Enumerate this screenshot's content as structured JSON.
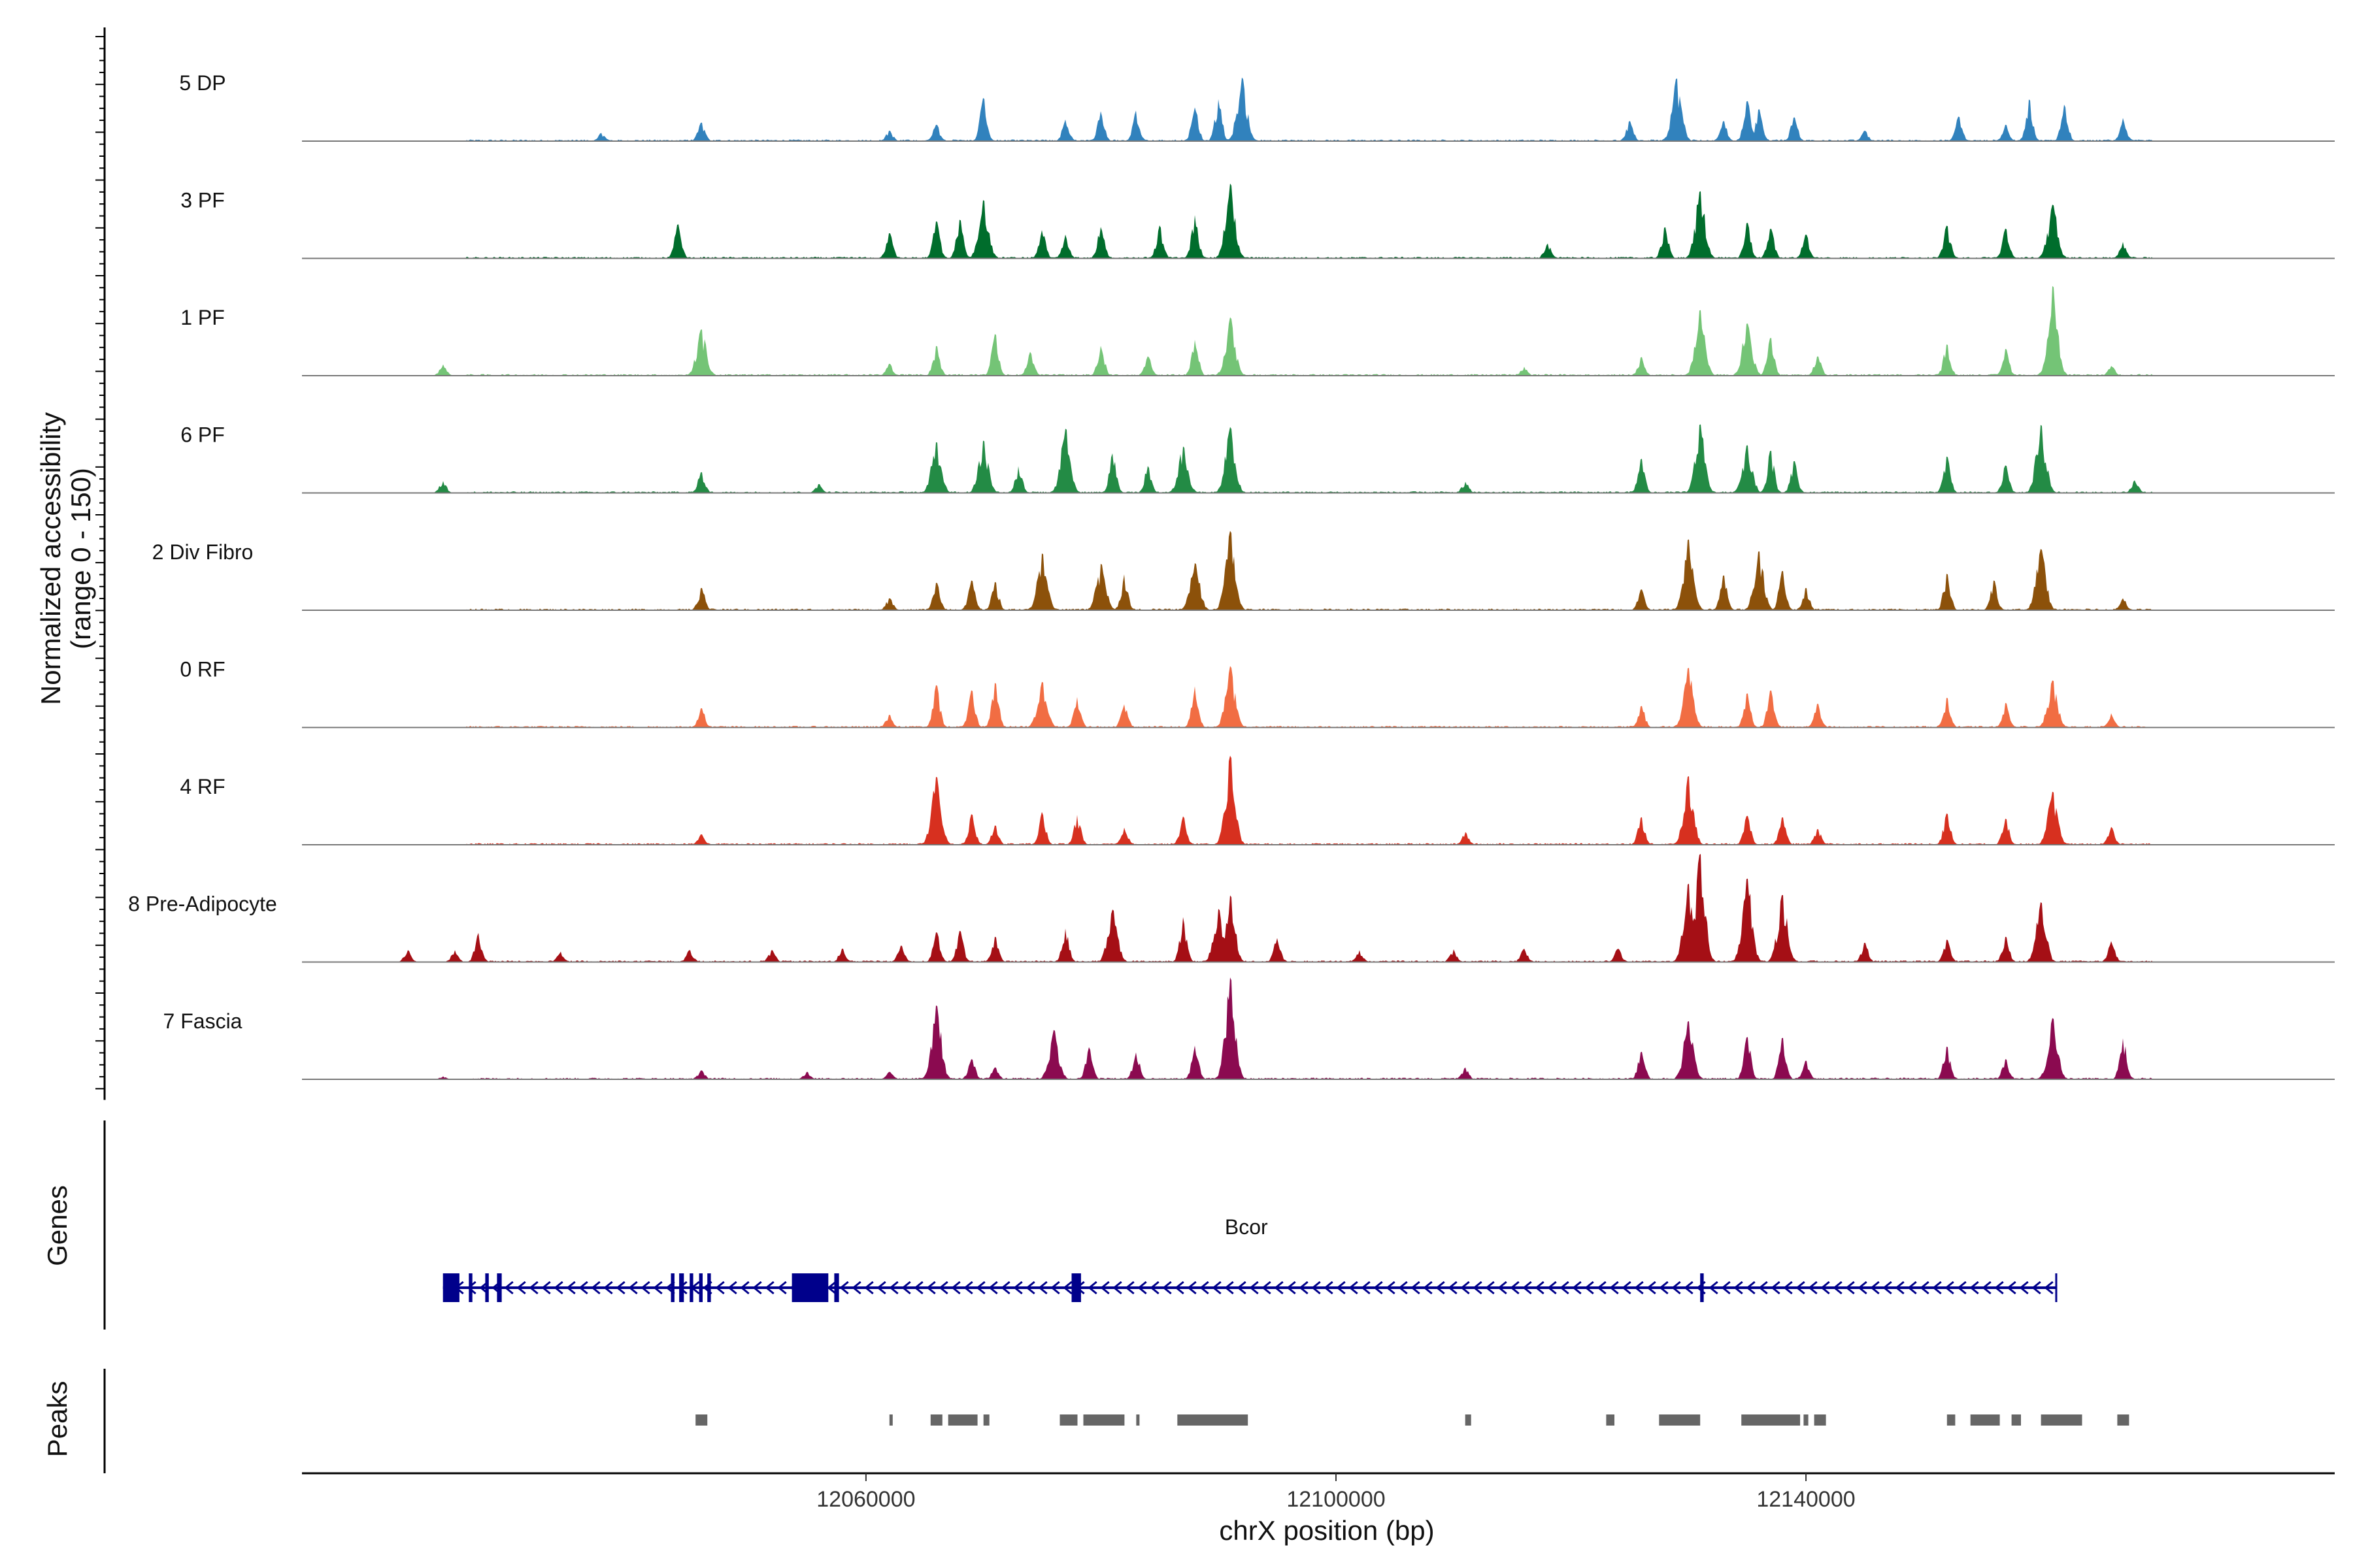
{
  "chart_data": {
    "type": "area",
    "title": "",
    "region": "chrX",
    "xlim": [
      12012000,
      12185000
    ],
    "xlabel": "chrX position (bp)",
    "x_ticks": [
      12060000,
      12100000,
      12140000
    ],
    "x_tick_labels": [
      "12060000",
      "12100000",
      "12140000"
    ],
    "coverage_ylabel": "Normalized accessibility\n(range 0 - 150)",
    "coverage_ylim": [
      0,
      150
    ],
    "genes_ylabel": "Genes",
    "peaks_ylabel": "Peaks",
    "series": [
      {
        "name": "5 DP",
        "color": "#3182bd",
        "peaks": [
          [
            12037500,
            11
          ],
          [
            12046000,
            25
          ],
          [
            12062000,
            14
          ],
          [
            12066000,
            22
          ],
          [
            12070000,
            58
          ],
          [
            12077000,
            29
          ],
          [
            12080000,
            40
          ],
          [
            12083000,
            41
          ],
          [
            12088000,
            45
          ],
          [
            12090000,
            56
          ],
          [
            12092000,
            85
          ],
          [
            12125000,
            27
          ],
          [
            12129000,
            84
          ],
          [
            12133000,
            27
          ],
          [
            12135000,
            54
          ],
          [
            12136000,
            43
          ],
          [
            12139000,
            32
          ],
          [
            12145000,
            14
          ],
          [
            12153000,
            33
          ],
          [
            12157000,
            22
          ],
          [
            12159000,
            56
          ],
          [
            12162000,
            49
          ],
          [
            12167000,
            31
          ]
        ]
      },
      {
        "name": "3 PF",
        "color": "#006d2c",
        "peaks": [
          [
            12044000,
            46
          ],
          [
            12062000,
            34
          ],
          [
            12066000,
            50
          ],
          [
            12068000,
            52
          ],
          [
            12070000,
            78
          ],
          [
            12075000,
            38
          ],
          [
            12077000,
            32
          ],
          [
            12080000,
            42
          ],
          [
            12085000,
            44
          ],
          [
            12088000,
            58
          ],
          [
            12091000,
            100
          ],
          [
            12118000,
            20
          ],
          [
            12128000,
            42
          ],
          [
            12131000,
            90
          ],
          [
            12135000,
            48
          ],
          [
            12137000,
            40
          ],
          [
            12140000,
            32
          ],
          [
            12152000,
            44
          ],
          [
            12157000,
            40
          ],
          [
            12161000,
            72
          ],
          [
            12167000,
            22
          ]
        ]
      },
      {
        "name": "1 PF",
        "color": "#74c476",
        "peaks": [
          [
            12024000,
            15
          ],
          [
            12046000,
            62
          ],
          [
            12062000,
            16
          ],
          [
            12066000,
            40
          ],
          [
            12071000,
            56
          ],
          [
            12074000,
            32
          ],
          [
            12080000,
            40
          ],
          [
            12084000,
            26
          ],
          [
            12088000,
            48
          ],
          [
            12091000,
            78
          ],
          [
            12116000,
            12
          ],
          [
            12126000,
            25
          ],
          [
            12131000,
            88
          ],
          [
            12135000,
            70
          ],
          [
            12137000,
            51
          ],
          [
            12141000,
            26
          ],
          [
            12152000,
            42
          ],
          [
            12157000,
            36
          ],
          [
            12161000,
            120
          ],
          [
            12166000,
            13
          ]
        ]
      },
      {
        "name": "6 PF",
        "color": "#238b45",
        "peaks": [
          [
            12024000,
            16
          ],
          [
            12046000,
            28
          ],
          [
            12056000,
            12
          ],
          [
            12066000,
            68
          ],
          [
            12070000,
            70
          ],
          [
            12073000,
            36
          ],
          [
            12077000,
            86
          ],
          [
            12081000,
            53
          ],
          [
            12084000,
            36
          ],
          [
            12087000,
            62
          ],
          [
            12091000,
            88
          ],
          [
            12111000,
            15
          ],
          [
            12126000,
            46
          ],
          [
            12131000,
            92
          ],
          [
            12135000,
            64
          ],
          [
            12137000,
            57
          ],
          [
            12139000,
            43
          ],
          [
            12152000,
            49
          ],
          [
            12157000,
            37
          ],
          [
            12160000,
            91
          ],
          [
            12168000,
            17
          ]
        ]
      },
      {
        "name": "2 Div Fibro",
        "color": "#8c510a",
        "peaks": [
          [
            12046000,
            30
          ],
          [
            12062000,
            16
          ],
          [
            12066000,
            37
          ],
          [
            12069000,
            40
          ],
          [
            12071000,
            38
          ],
          [
            12075000,
            76
          ],
          [
            12080000,
            62
          ],
          [
            12082000,
            48
          ],
          [
            12088000,
            63
          ],
          [
            12091000,
            106
          ],
          [
            12126000,
            28
          ],
          [
            12130000,
            95
          ],
          [
            12133000,
            47
          ],
          [
            12136000,
            79
          ],
          [
            12138000,
            53
          ],
          [
            12140000,
            30
          ],
          [
            12152000,
            49
          ],
          [
            12156000,
            40
          ],
          [
            12160000,
            82
          ],
          [
            12167000,
            16
          ]
        ]
      },
      {
        "name": "0 RF",
        "color": "#f16d43",
        "peaks": [
          [
            12046000,
            26
          ],
          [
            12062000,
            17
          ],
          [
            12066000,
            57
          ],
          [
            12069000,
            50
          ],
          [
            12071000,
            60
          ],
          [
            12075000,
            61
          ],
          [
            12078000,
            41
          ],
          [
            12082000,
            31
          ],
          [
            12088000,
            55
          ],
          [
            12091000,
            82
          ],
          [
            12126000,
            29
          ],
          [
            12130000,
            80
          ],
          [
            12135000,
            46
          ],
          [
            12137000,
            50
          ],
          [
            12141000,
            32
          ],
          [
            12152000,
            40
          ],
          [
            12157000,
            33
          ],
          [
            12161000,
            63
          ],
          [
            12166000,
            19
          ]
        ]
      },
      {
        "name": "4 RF",
        "color": "#d7301f",
        "peaks": [
          [
            12046000,
            14
          ],
          [
            12066000,
            91
          ],
          [
            12069000,
            41
          ],
          [
            12071000,
            26
          ],
          [
            12075000,
            44
          ],
          [
            12078000,
            40
          ],
          [
            12082000,
            23
          ],
          [
            12087000,
            38
          ],
          [
            12091000,
            119
          ],
          [
            12111000,
            17
          ],
          [
            12126000,
            37
          ],
          [
            12130000,
            92
          ],
          [
            12135000,
            39
          ],
          [
            12138000,
            37
          ],
          [
            12141000,
            21
          ],
          [
            12152000,
            42
          ],
          [
            12157000,
            35
          ],
          [
            12161000,
            71
          ],
          [
            12166000,
            24
          ]
        ]
      },
      {
        "name": "8 Pre-Adipocyte",
        "color": "#a50f15",
        "peaks": [
          [
            12021000,
            16
          ],
          [
            12025000,
            16
          ],
          [
            12027000,
            39
          ],
          [
            12034000,
            14
          ],
          [
            12045000,
            16
          ],
          [
            12052000,
            16
          ],
          [
            12058000,
            18
          ],
          [
            12063000,
            22
          ],
          [
            12066000,
            40
          ],
          [
            12068000,
            42
          ],
          [
            12071000,
            34
          ],
          [
            12077000,
            45
          ],
          [
            12081000,
            70
          ],
          [
            12087000,
            60
          ],
          [
            12090000,
            71
          ],
          [
            12091000,
            89
          ],
          [
            12095000,
            32
          ],
          [
            12102000,
            16
          ],
          [
            12110000,
            17
          ],
          [
            12116000,
            18
          ],
          [
            12124000,
            18
          ],
          [
            12130000,
            105
          ],
          [
            12131000,
            145
          ],
          [
            12135000,
            112
          ],
          [
            12138000,
            90
          ],
          [
            12145000,
            26
          ],
          [
            12152000,
            30
          ],
          [
            12157000,
            34
          ],
          [
            12160000,
            80
          ],
          [
            12166000,
            28
          ]
        ]
      },
      {
        "name": "7 Fascia",
        "color": "#8b0a50",
        "peaks": [
          [
            12024000,
            4
          ],
          [
            12046000,
            12
          ],
          [
            12055000,
            10
          ],
          [
            12062000,
            10
          ],
          [
            12066000,
            99
          ],
          [
            12069000,
            27
          ],
          [
            12071000,
            16
          ],
          [
            12076000,
            66
          ],
          [
            12079000,
            43
          ],
          [
            12083000,
            36
          ],
          [
            12088000,
            45
          ],
          [
            12091000,
            136
          ],
          [
            12111000,
            16
          ],
          [
            12126000,
            37
          ],
          [
            12130000,
            78
          ],
          [
            12135000,
            57
          ],
          [
            12138000,
            56
          ],
          [
            12140000,
            25
          ],
          [
            12152000,
            44
          ],
          [
            12157000,
            27
          ],
          [
            12161000,
            82
          ],
          [
            12167000,
            55
          ]
        ]
      }
    ],
    "genes": [
      {
        "name": "Bcor",
        "strand": "-",
        "start": 12024000,
        "end": 12161300,
        "exons": [
          [
            12024000,
            12025400
          ],
          [
            12026200,
            12026500
          ],
          [
            12027600,
            12027900
          ],
          [
            12028600,
            12029000
          ],
          [
            12043400,
            12043700
          ],
          [
            12044100,
            12044500
          ],
          [
            12045000,
            12045300
          ],
          [
            12045800,
            12046100
          ],
          [
            12046500,
            12046800
          ],
          [
            12053700,
            12056800
          ],
          [
            12057300,
            12057700
          ],
          [
            12077500,
            12078300
          ],
          [
            12131000,
            12131300
          ]
        ]
      }
    ],
    "peaks_track": [
      [
        12045500,
        12046500
      ],
      [
        12062000,
        12062200
      ],
      [
        12065500,
        12066500
      ],
      [
        12067000,
        12069500
      ],
      [
        12070000,
        12070500
      ],
      [
        12076500,
        12078000
      ],
      [
        12078500,
        12082000
      ],
      [
        12083000,
        12083200
      ],
      [
        12086500,
        12092500
      ],
      [
        12111000,
        12111500
      ],
      [
        12123000,
        12123700
      ],
      [
        12127500,
        12131000
      ],
      [
        12134500,
        12139500
      ],
      [
        12139800,
        12140200
      ],
      [
        12140700,
        12141700
      ],
      [
        12152000,
        12152700
      ],
      [
        12154000,
        12156500
      ],
      [
        12157500,
        12158300
      ],
      [
        12160000,
        12163500
      ],
      [
        12166500,
        12167500
      ]
    ]
  }
}
